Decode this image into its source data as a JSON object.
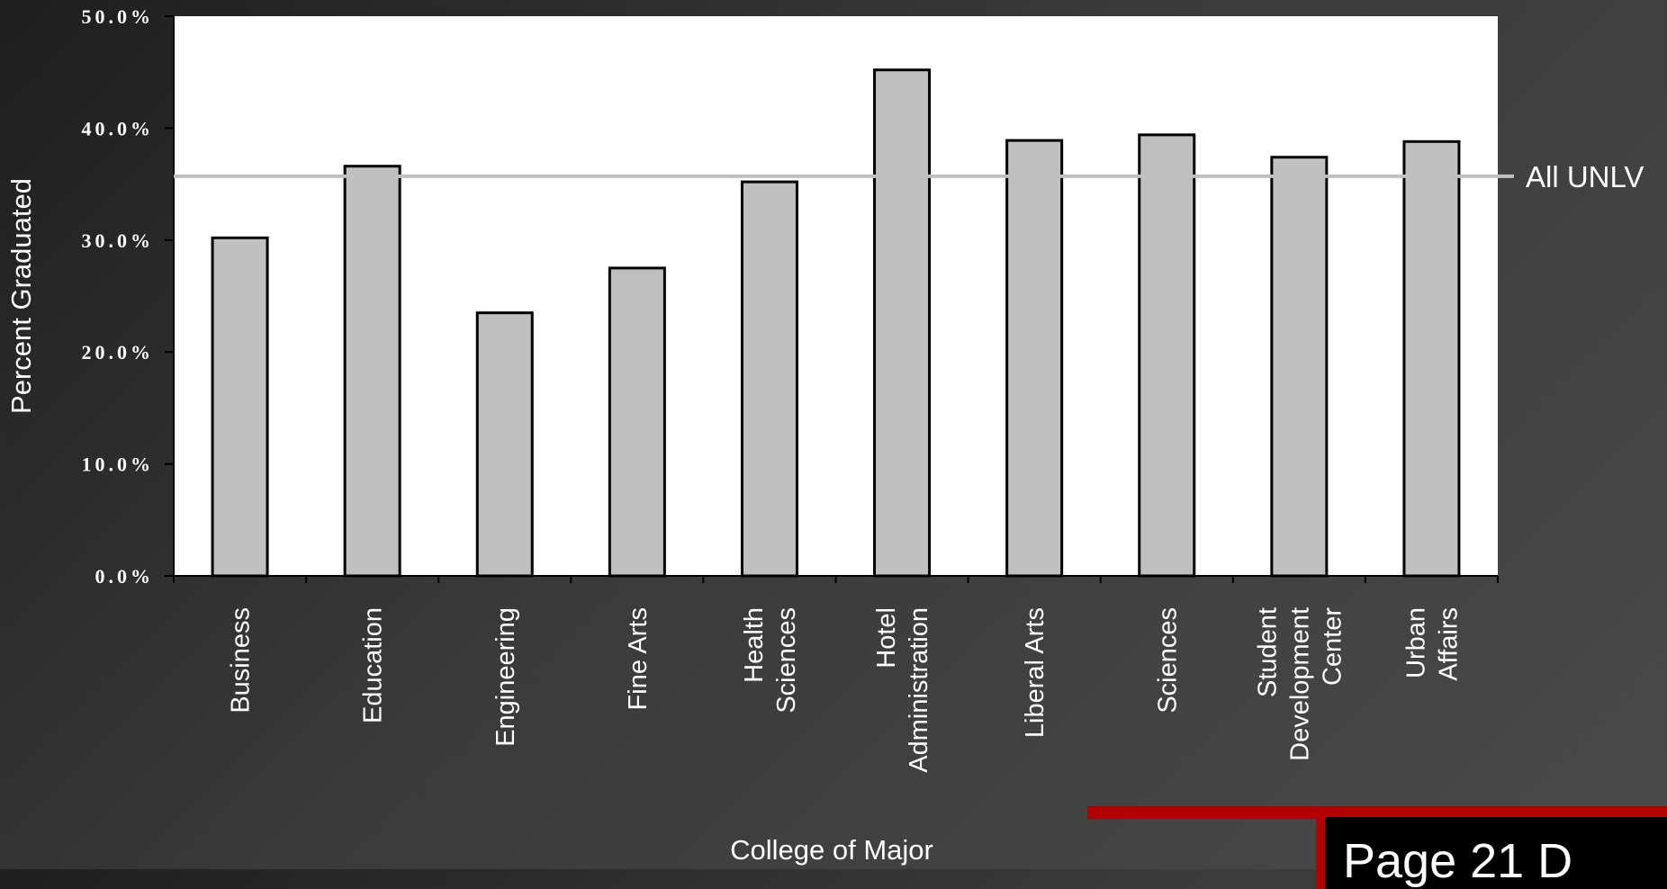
{
  "page": {
    "label": "Page 21 D"
  },
  "chart_data": {
    "type": "bar",
    "title": "",
    "xlabel": "College of Major",
    "ylabel": "Percent Graduated",
    "ylim": [
      0,
      50
    ],
    "yticks": [
      "0.0%",
      "10.0%",
      "20.0%",
      "30.0%",
      "40.0%",
      "50.0%"
    ],
    "categories": [
      [
        "Business"
      ],
      [
        "Education"
      ],
      [
        "Engineering"
      ],
      [
        "Fine Arts"
      ],
      [
        "Health",
        "Sciences"
      ],
      [
        "Hotel",
        "Administration"
      ],
      [
        "Liberal Arts"
      ],
      [
        "Sciences"
      ],
      [
        "Student",
        "Development",
        "Center"
      ],
      [
        "Urban",
        "Affairs"
      ]
    ],
    "values": [
      30.2,
      36.6,
      23.5,
      27.5,
      35.2,
      45.2,
      38.9,
      39.4,
      37.4,
      38.8
    ],
    "data_labels": [
      "30.2%",
      "36.6%",
      "23.5%",
      "27.5%",
      "35.2%",
      "45.2%",
      "38.9%",
      "39.4%",
      "37.4%",
      "38.8%"
    ],
    "reference_line": {
      "label": "All UNLV",
      "value": 35.7
    },
    "colors": {
      "bar": "#c0c0c0",
      "bar_outline": "#000000",
      "plot_bg": "#ffffff",
      "ref_line": "#c0c0c0"
    },
    "grid": false,
    "legend": "none"
  }
}
